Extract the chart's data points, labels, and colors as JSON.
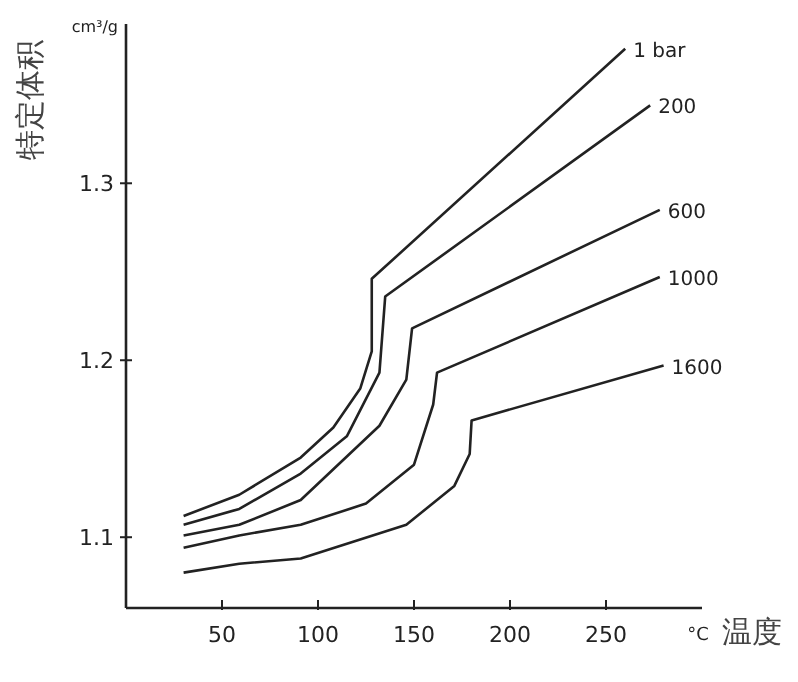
{
  "chart_data": {
    "type": "line",
    "xlabel": "温度",
    "ylabel": "特定体积",
    "annotations": [
      "cm³/g",
      "°C"
    ],
    "xlim": [
      0,
      300
    ],
    "ylim": [
      1.06,
      1.39
    ],
    "xticks": [
      50,
      100,
      150,
      200,
      250
    ],
    "yticks": [
      1.1,
      1.2,
      1.3
    ],
    "marker": "none",
    "line_style": "solid",
    "series": [
      {
        "name": "1 bar",
        "color": "#222222",
        "x": [
          30,
          59,
          91,
          108,
          122,
          128,
          128,
          260
        ],
        "values": [
          1.112,
          1.124,
          1.145,
          1.162,
          1.184,
          1.205,
          1.246,
          1.376
        ]
      },
      {
        "name": "200",
        "color": "#222222",
        "x": [
          30,
          59,
          91,
          115,
          132,
          135,
          273
        ],
        "values": [
          1.107,
          1.116,
          1.136,
          1.157,
          1.193,
          1.236,
          1.344
        ]
      },
      {
        "name": "600",
        "color": "#222222",
        "x": [
          30,
          59,
          91,
          132,
          146,
          149,
          278
        ],
        "values": [
          1.101,
          1.107,
          1.121,
          1.163,
          1.189,
          1.218,
          1.285
        ]
      },
      {
        "name": "1000",
        "color": "#222222",
        "x": [
          30,
          59,
          91,
          125,
          150,
          160,
          162,
          278
        ],
        "values": [
          1.094,
          1.101,
          1.107,
          1.119,
          1.141,
          1.175,
          1.193,
          1.247
        ]
      },
      {
        "name": "1600",
        "color": "#222222",
        "x": [
          30,
          59,
          91,
          146,
          171,
          179,
          180,
          280
        ],
        "values": [
          1.08,
          1.085,
          1.088,
          1.107,
          1.129,
          1.147,
          1.166,
          1.197
        ]
      }
    ]
  }
}
